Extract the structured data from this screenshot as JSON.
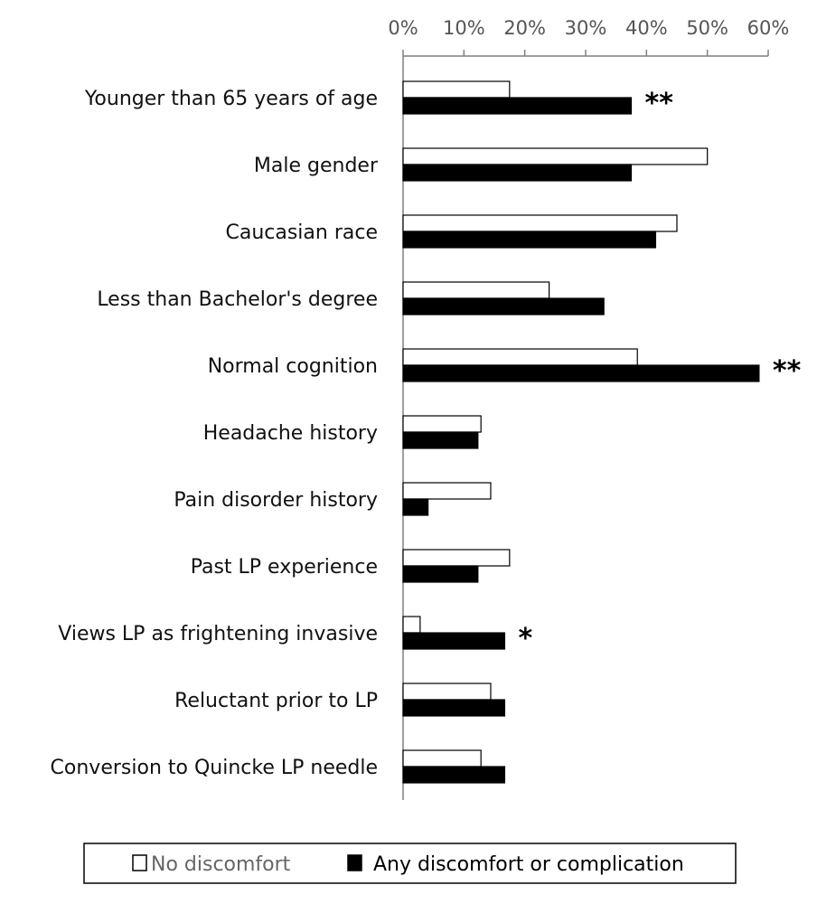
{
  "chart_data": {
    "type": "bar",
    "orientation": "horizontal",
    "categories": [
      "Younger than 65 years of age",
      "Male gender",
      "Caucasian race",
      "Less than Bachelor's degree",
      "Normal cognition",
      "Headache history",
      "Pain disorder history",
      "Past LP experience",
      "Views LP as frightening invasive",
      "Reluctant prior to LP",
      "Conversion to Quincke LP needle"
    ],
    "series": [
      {
        "name": "No discomfort",
        "color": "#ffffff",
        "values": [
          17.5,
          50,
          45,
          24,
          38.5,
          12.8,
          14.4,
          17.5,
          2.8,
          14.4,
          12.8
        ]
      },
      {
        "name": "Any discomfort or complication",
        "color": "#000000",
        "values": [
          37.5,
          37.5,
          41.5,
          33,
          58.5,
          12.3,
          4.1,
          12.3,
          16.7,
          16.7,
          16.7
        ]
      }
    ],
    "annotations": [
      "**",
      "",
      "",
      "",
      "**",
      "",
      "",
      "",
      "*",
      "",
      ""
    ],
    "xlim": [
      0,
      60
    ],
    "xticks": [
      0,
      10,
      20,
      30,
      40,
      50,
      60
    ],
    "tick_labels": [
      "0%",
      "10%",
      "20%",
      "30%",
      "40%",
      "50%",
      "60%"
    ],
    "x_axis_position": "top",
    "grid": false,
    "legend_position": "bottom"
  }
}
